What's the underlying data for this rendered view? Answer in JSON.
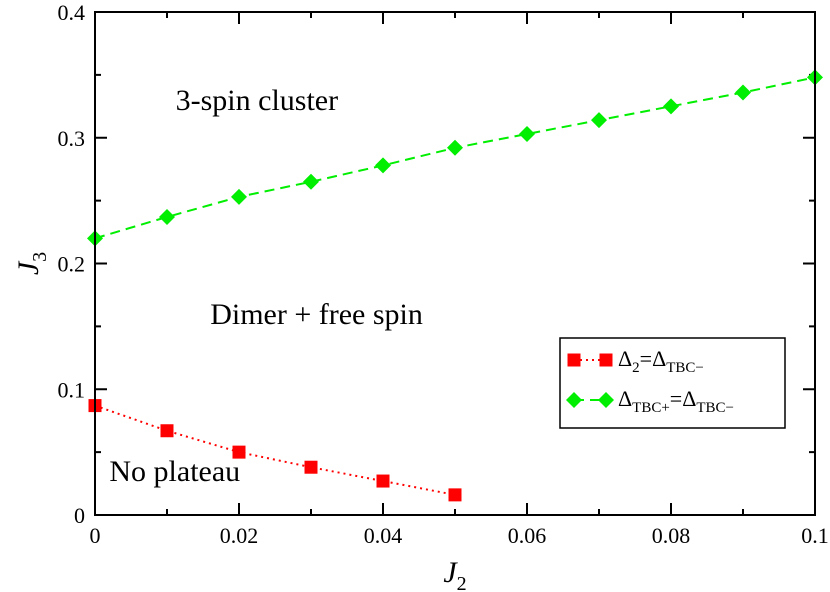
{
  "chart_data": {
    "type": "line",
    "xlabel": {
      "base": "J",
      "sub": "2"
    },
    "ylabel": {
      "base": "J",
      "sub": "3"
    },
    "xlim": [
      0,
      0.1
    ],
    "ylim": [
      0,
      0.4
    ],
    "x_ticks": [
      0,
      0.02,
      0.04,
      0.06,
      0.08,
      0.1
    ],
    "x_tick_labels": [
      "0",
      "0.02",
      "0.04",
      "0.06",
      "0.08",
      "0.1"
    ],
    "y_ticks": [
      0,
      0.1,
      0.2,
      0.3,
      0.4
    ],
    "y_tick_labels": [
      "0",
      "0.1",
      "0.2",
      "0.3",
      "0.4"
    ],
    "series": [
      {
        "name": "Δ2=ΔTBC−",
        "label_parts": [
          {
            "text": "Δ",
            "sub": false
          },
          {
            "text": "2",
            "sub": true
          },
          {
            "text": "=Δ",
            "sub": false
          },
          {
            "text": "TBC−",
            "sub": true
          }
        ],
        "color": "#ff0000",
        "marker": "square",
        "line_style": "dotted",
        "x": [
          0,
          0.01,
          0.02,
          0.03,
          0.04,
          0.05
        ],
        "values": [
          0.087,
          0.067,
          0.05,
          0.038,
          0.027,
          0.016
        ]
      },
      {
        "name": "ΔTBC+=ΔTBC−",
        "label_parts": [
          {
            "text": "Δ",
            "sub": false
          },
          {
            "text": "TBC+",
            "sub": true
          },
          {
            "text": "=Δ",
            "sub": false
          },
          {
            "text": "TBC−",
            "sub": true
          }
        ],
        "color": "#00ee00",
        "marker": "diamond",
        "line_style": "dashed",
        "x": [
          0,
          0.01,
          0.02,
          0.03,
          0.04,
          0.05,
          0.06,
          0.07,
          0.08,
          0.09,
          0.1
        ],
        "values": [
          0.22,
          0.237,
          0.253,
          0.265,
          0.278,
          0.292,
          0.303,
          0.314,
          0.325,
          0.336,
          0.348
        ]
      }
    ],
    "annotations": [
      {
        "text": "3-spin cluster",
        "x": 0.0112,
        "y": 0.322
      },
      {
        "text": "Dimer + free spin",
        "x": 0.016,
        "y": 0.152
      },
      {
        "text": "No plateau",
        "x": 0.002,
        "y": 0.027
      }
    ],
    "legend_position": "lower-right"
  }
}
